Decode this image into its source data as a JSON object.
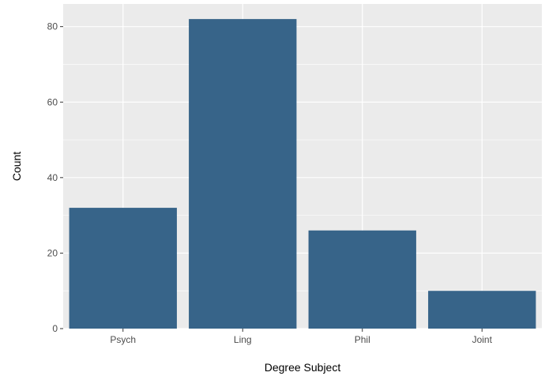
{
  "chart_data": {
    "type": "bar",
    "categories": [
      "Psych",
      "Ling",
      "Phil",
      "Joint"
    ],
    "values": [
      32,
      82,
      26,
      10
    ],
    "title": "",
    "xlabel": "Degree Subject",
    "ylabel": "Count",
    "ylim": [
      0,
      86
    ],
    "yticks": [
      0,
      20,
      40,
      60,
      80
    ],
    "grid": true,
    "legend": "none",
    "colors": {
      "bar": "#376489",
      "panel": "#ebebeb",
      "grid": "#ffffff",
      "tick": "#333333"
    }
  }
}
